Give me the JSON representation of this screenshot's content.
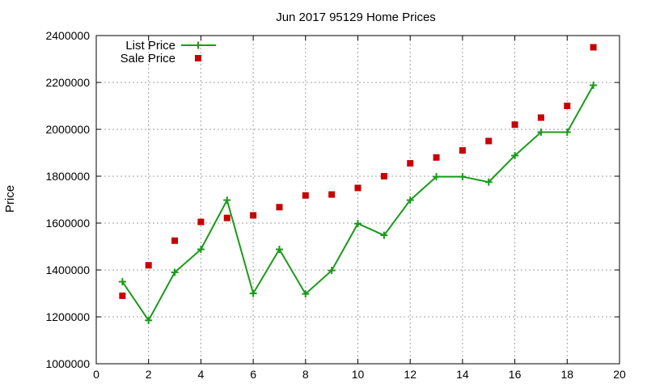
{
  "chart_data": {
    "type": "line",
    "title": "Jun 2017 95129 Home Prices",
    "xlabel": "",
    "ylabel": "Price",
    "xlim": [
      0,
      20
    ],
    "ylim": [
      1000000,
      2400000
    ],
    "x_ticks": [
      0,
      2,
      4,
      6,
      8,
      10,
      12,
      14,
      16,
      18,
      20
    ],
    "y_ticks": [
      1000000,
      1200000,
      1400000,
      1600000,
      1800000,
      2000000,
      2200000,
      2400000
    ],
    "grid": true,
    "legend_position": "top-left",
    "series": [
      {
        "name": "List Price",
        "style": "line+cross",
        "color": "#1a9a1a",
        "x": [
          1,
          2,
          3,
          4,
          5,
          6,
          7,
          8,
          9,
          10,
          11,
          12,
          13,
          14,
          15,
          16,
          17,
          18,
          19
        ],
        "values": [
          1350000,
          1185000,
          1390000,
          1488000,
          1698000,
          1300000,
          1488000,
          1298000,
          1398000,
          1598000,
          1548000,
          1698000,
          1798000,
          1798000,
          1775000,
          1888000,
          1988000,
          1988000,
          2188000
        ]
      },
      {
        "name": "Sale Price",
        "style": "square",
        "color": "#c80000",
        "x": [
          1,
          2,
          3,
          4,
          5,
          6,
          7,
          8,
          9,
          10,
          11,
          12,
          13,
          14,
          15,
          16,
          17,
          18,
          19
        ],
        "values": [
          1290000,
          1420000,
          1525000,
          1605000,
          1622000,
          1633000,
          1668000,
          1718000,
          1722000,
          1750000,
          1800000,
          1855000,
          1880000,
          1910000,
          1950000,
          2020000,
          2050000,
          2100000,
          2350000
        ]
      }
    ]
  }
}
